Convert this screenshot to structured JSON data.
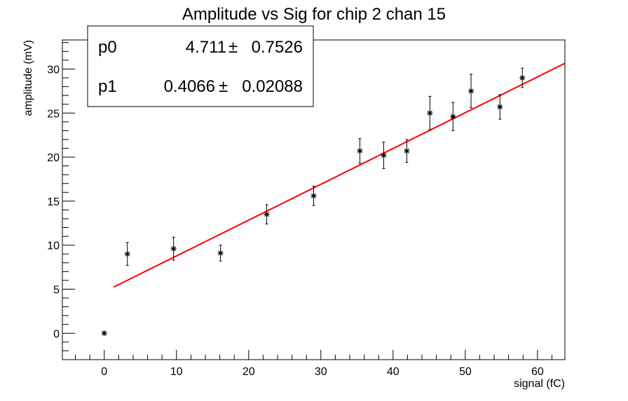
{
  "chart_data": {
    "type": "scatter",
    "title": "Amplitude vs Sig for chip 2 chan 15",
    "xlabel": "signal (fC)",
    "ylabel": "amplitude (mV)",
    "xlim": [
      -5.8,
      63.8
    ],
    "ylim": [
      -3.0,
      33.3
    ],
    "xticks": [
      0,
      10,
      20,
      30,
      40,
      50,
      60
    ],
    "yticks": [
      0,
      5,
      10,
      15,
      20,
      25,
      30
    ],
    "grid": false,
    "points": [
      {
        "x": 0.0,
        "y": 0.0,
        "err": 0.0
      },
      {
        "x": 3.2,
        "y": 9.0,
        "err": 1.3
      },
      {
        "x": 9.6,
        "y": 9.6,
        "err": 1.3
      },
      {
        "x": 16.1,
        "y": 9.1,
        "err": 0.9
      },
      {
        "x": 22.5,
        "y": 13.5,
        "err": 1.1
      },
      {
        "x": 29.0,
        "y": 15.6,
        "err": 1.1
      },
      {
        "x": 35.4,
        "y": 20.7,
        "err": 1.4
      },
      {
        "x": 38.7,
        "y": 20.2,
        "err": 1.5
      },
      {
        "x": 41.9,
        "y": 20.7,
        "err": 1.3
      },
      {
        "x": 45.1,
        "y": 25.0,
        "err": 1.9
      },
      {
        "x": 48.3,
        "y": 24.6,
        "err": 1.6
      },
      {
        "x": 50.8,
        "y": 27.5,
        "err": 1.9
      },
      {
        "x": 54.8,
        "y": 25.7,
        "err": 1.4
      },
      {
        "x": 57.9,
        "y": 29.0,
        "err": 1.1
      }
    ],
    "fit": {
      "x_range": [
        1.3,
        63.8
      ],
      "p0": 4.711,
      "p1": 0.4066,
      "color": "#ff0000"
    },
    "stats_box": {
      "rows": [
        {
          "name": "p0",
          "value": "4.711",
          "pm": "±",
          "error": "0.7526"
        },
        {
          "name": "p1",
          "value": "0.4066",
          "pm": "±",
          "error": "0.02088"
        }
      ]
    }
  }
}
